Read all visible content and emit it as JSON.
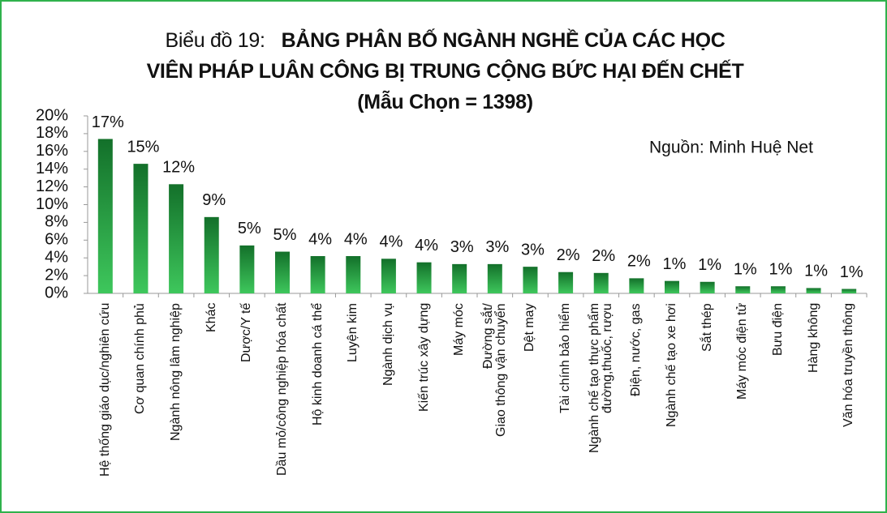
{
  "chart_data": {
    "type": "bar",
    "title_label": "Biểu đồ 19:",
    "title": [
      "BẢNG PHÂN BỐ NGÀNH NGHỀ CỦA CÁC HỌC",
      "VIÊN PHÁP LUÂN CÔNG BỊ TRUNG CỘNG BỨC HẠI ĐẾN CHẾT"
    ],
    "subtitle": "(Mẫu Chọn = 1398)",
    "source": "Nguồn: Minh Huệ Net",
    "categories": [
      "Hệ thống giáo dục/nghiên cứu",
      "Cơ quan chính phủ",
      "Ngành nông lâm nghiệp",
      "Khác",
      "Dược/Y tế",
      "Dầu mỏ/công nghiệp hóa chất",
      "Hộ kinh doanh cá thể",
      "Luyện kim",
      "Ngành dịch vụ",
      "Kiến trúc xây dựng",
      "Máy móc",
      "Đường sắt/\nGiao thông vận chuyển",
      "Dệt may",
      "Tài chính bảo hiểm",
      "Ngành chế tạo thực phẩm\nđường,thuốc, rượu",
      "Điện, nước, gas",
      "Ngành chế tạo xe hơi",
      "Sắt thép",
      "Máy móc điện tử",
      "Bưu điện",
      "Hàng không",
      "Văn hóa truyền thông"
    ],
    "values": [
      17.4,
      14.6,
      12.3,
      8.6,
      5.4,
      4.7,
      4.2,
      4.2,
      3.9,
      3.5,
      3.3,
      3.3,
      3.0,
      2.4,
      2.3,
      1.7,
      1.4,
      1.3,
      0.8,
      0.8,
      0.6,
      0.5
    ],
    "value_labels": [
      "17%",
      "15%",
      "12%",
      "9%",
      "5%",
      "5%",
      "4%",
      "4%",
      "4%",
      "4%",
      "3%",
      "3%",
      "3%",
      "2%",
      "2%",
      "2%",
      "1%",
      "1%",
      "1%",
      "1%",
      "1%",
      "1%"
    ],
    "color": [
      "#13702a",
      "#3ec75c"
    ],
    "ylim": [
      0,
      20
    ],
    "yticks": [
      {
        "value": 0,
        "label": "0%"
      },
      {
        "value": 2,
        "label": "2%"
      },
      {
        "value": 4,
        "label": "4%"
      },
      {
        "value": 6,
        "label": "6%"
      },
      {
        "value": 8,
        "label": "8%"
      },
      {
        "value": 10,
        "label": "10%"
      },
      {
        "value": 12,
        "label": "12%"
      },
      {
        "value": 14,
        "label": "14%"
      },
      {
        "value": 16,
        "label": "16%"
      },
      {
        "value": 18,
        "label": "18%"
      },
      {
        "value": 20,
        "label": "20%"
      }
    ],
    "grid": false
  }
}
